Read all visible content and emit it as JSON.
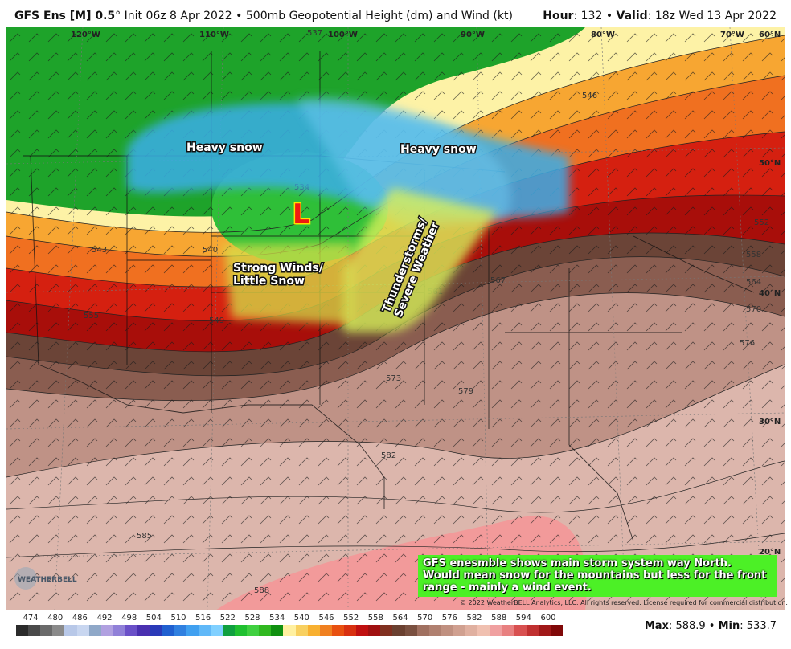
{
  "header": {
    "model": "GFS Ens [M] 0.5",
    "deg_symbol": "°",
    "init": "Init 06z 8 Apr 2022",
    "sep": "•",
    "product": "500mb Geopotential Height (dm) and Wind (kt)",
    "hour_label": "Hour",
    "hour_value": "132",
    "valid_label": "Valid",
    "valid_value": "18z Wed 13 Apr 2022"
  },
  "map": {
    "longitude_labels": [
      "120°W",
      "110°W",
      "100°W",
      "90°W",
      "80°W",
      "70°W"
    ],
    "latitude_labels": [
      "60°N",
      "50°N",
      "40°N",
      "30°N",
      "20°N"
    ],
    "contour_labels": [
      "537",
      "546",
      "534",
      "543",
      "540",
      "549",
      "555",
      "558",
      "552",
      "564",
      "570",
      "567",
      "561",
      "573",
      "576",
      "579",
      "582",
      "585",
      "588"
    ],
    "low_marker": "L",
    "annotations": [
      {
        "text": "Heavy snow"
      },
      {
        "text": "Heavy snow"
      },
      {
        "text": "Strong Winds/"
      },
      {
        "text": "Little Snow"
      },
      {
        "text": "Thunderstorms/"
      },
      {
        "text": "Severe Weather"
      }
    ],
    "colors": {
      "green": "#1ea32a",
      "light_green": "#2fbf38",
      "pale_yellow": "#fdf2a6",
      "orange": "#f7a632",
      "red": "#d52010",
      "dark_red": "#a80e0a",
      "brown": "#6b4437",
      "pink_brown": "#bf9286",
      "light_pink": "#dcb6ac",
      "pink": "#f29a9a",
      "snow_blue": "#3aaee8",
      "wind_yellow": "#d4e04a",
      "storm_yellow": "#d8f05a"
    }
  },
  "note": {
    "text": "GFS enesmble shows main storm system way North. Would mean snow for the mountains but less for the front range - mainly a wind event.",
    "bg_color": "#4cf026"
  },
  "copyright": "© 2022 WeatherBELL Analytics, LLC. All rights reserved. License required for commercial distribution.",
  "logo": {
    "text": "WEATHERBELL"
  },
  "legend": {
    "labels": [
      "474",
      "480",
      "486",
      "492",
      "498",
      "504",
      "510",
      "516",
      "522",
      "528",
      "534",
      "540",
      "546",
      "552",
      "558",
      "564",
      "570",
      "576",
      "582",
      "588",
      "594",
      "600"
    ],
    "colors": [
      "#2b2b2b",
      "#4a4a4a",
      "#6a6a6a",
      "#8a8a8a",
      "#b8c8e8",
      "#c8d6f0",
      "#8fa8c8",
      "#b0a0e0",
      "#9080d8",
      "#6a50c8",
      "#4a30b0",
      "#2a3ab8",
      "#2060d0",
      "#3080e0",
      "#40a0f0",
      "#60b8f8",
      "#80d0ff",
      "#10a040",
      "#20c030",
      "#40d040",
      "#30b820",
      "#109010",
      "#fff0a0",
      "#f8d060",
      "#f8b030",
      "#f08020",
      "#e85010",
      "#d83010",
      "#c01010",
      "#a01010",
      "#803020",
      "#6a4030",
      "#7a5040",
      "#a07060",
      "#b08070",
      "#c09080",
      "#d0a090",
      "#e0b0a0",
      "#f0c0b0",
      "#f0a0a0",
      "#e88080",
      "#d85050",
      "#c03030",
      "#a01818",
      "#800808"
    ]
  },
  "stats": {
    "max_label": "Max",
    "max_value": "588.9",
    "min_label": "Min",
    "min_value": "533.7",
    "sep": "•"
  }
}
